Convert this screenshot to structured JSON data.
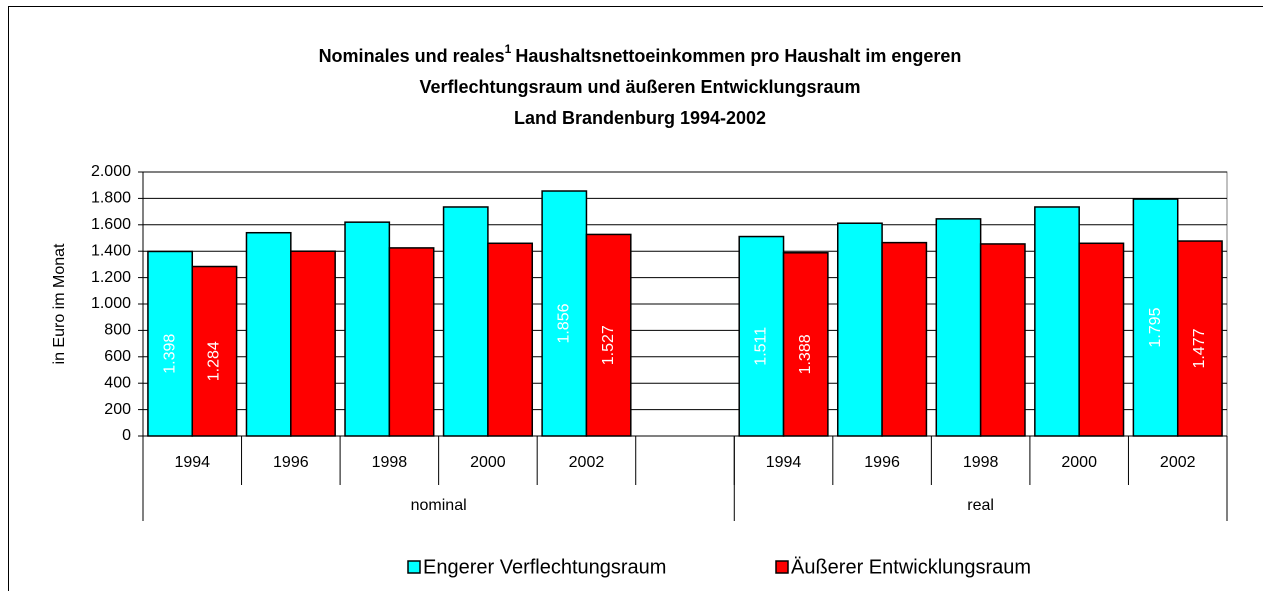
{
  "chart_data": {
    "type": "bar",
    "title": {
      "line1_a": "Nominales und reales",
      "footnote_mark": "1",
      "line1_b": "Haushaltsnettoeinkommen pro Haushalt im engeren",
      "line2": "Verflechtungsraum und äußeren Entwicklungsraum",
      "line3": "Land Brandenburg 1994-2002"
    },
    "y_label": "in Euro im Monat",
    "categories": [
      "1994",
      "1996",
      "1998",
      "2000",
      "2002",
      null,
      "1994",
      "1996",
      "1998",
      "2000",
      "2002"
    ],
    "group_labels": [
      "nominal",
      "real"
    ],
    "series": [
      {
        "name": "Engerer Verflechtungsraum",
        "color": "#00ffff",
        "values": [
          1398,
          1540,
          1620,
          1735,
          1856,
          null,
          1511,
          1612,
          1645,
          1735,
          1795
        ],
        "value_labels": [
          "1.398",
          null,
          null,
          null,
          "1.856",
          null,
          "1.511",
          null,
          null,
          null,
          "1.795"
        ]
      },
      {
        "name": "Äußerer Entwicklungsraum",
        "color": "#ff0000",
        "values": [
          1284,
          1400,
          1425,
          1460,
          1527,
          null,
          1388,
          1465,
          1455,
          1460,
          1477
        ],
        "value_labels": [
          "1.284",
          null,
          null,
          null,
          "1.527",
          null,
          "1.388",
          null,
          null,
          null,
          "1.477"
        ]
      }
    ],
    "ylim": [
      0,
      2000
    ],
    "yticks": [
      0,
      200,
      400,
      600,
      800,
      {
        "value": 1000,
        "label": "1.000"
      },
      {
        "value": 1200,
        "label": "1.200"
      },
      {
        "value": 1400,
        "label": "1.400"
      },
      {
        "value": 1600,
        "label": "1.600"
      },
      {
        "value": 1800,
        "label": "1.800"
      },
      {
        "value": 2000,
        "label": "2.000"
      }
    ],
    "grid": true,
    "legend": "bottom"
  }
}
